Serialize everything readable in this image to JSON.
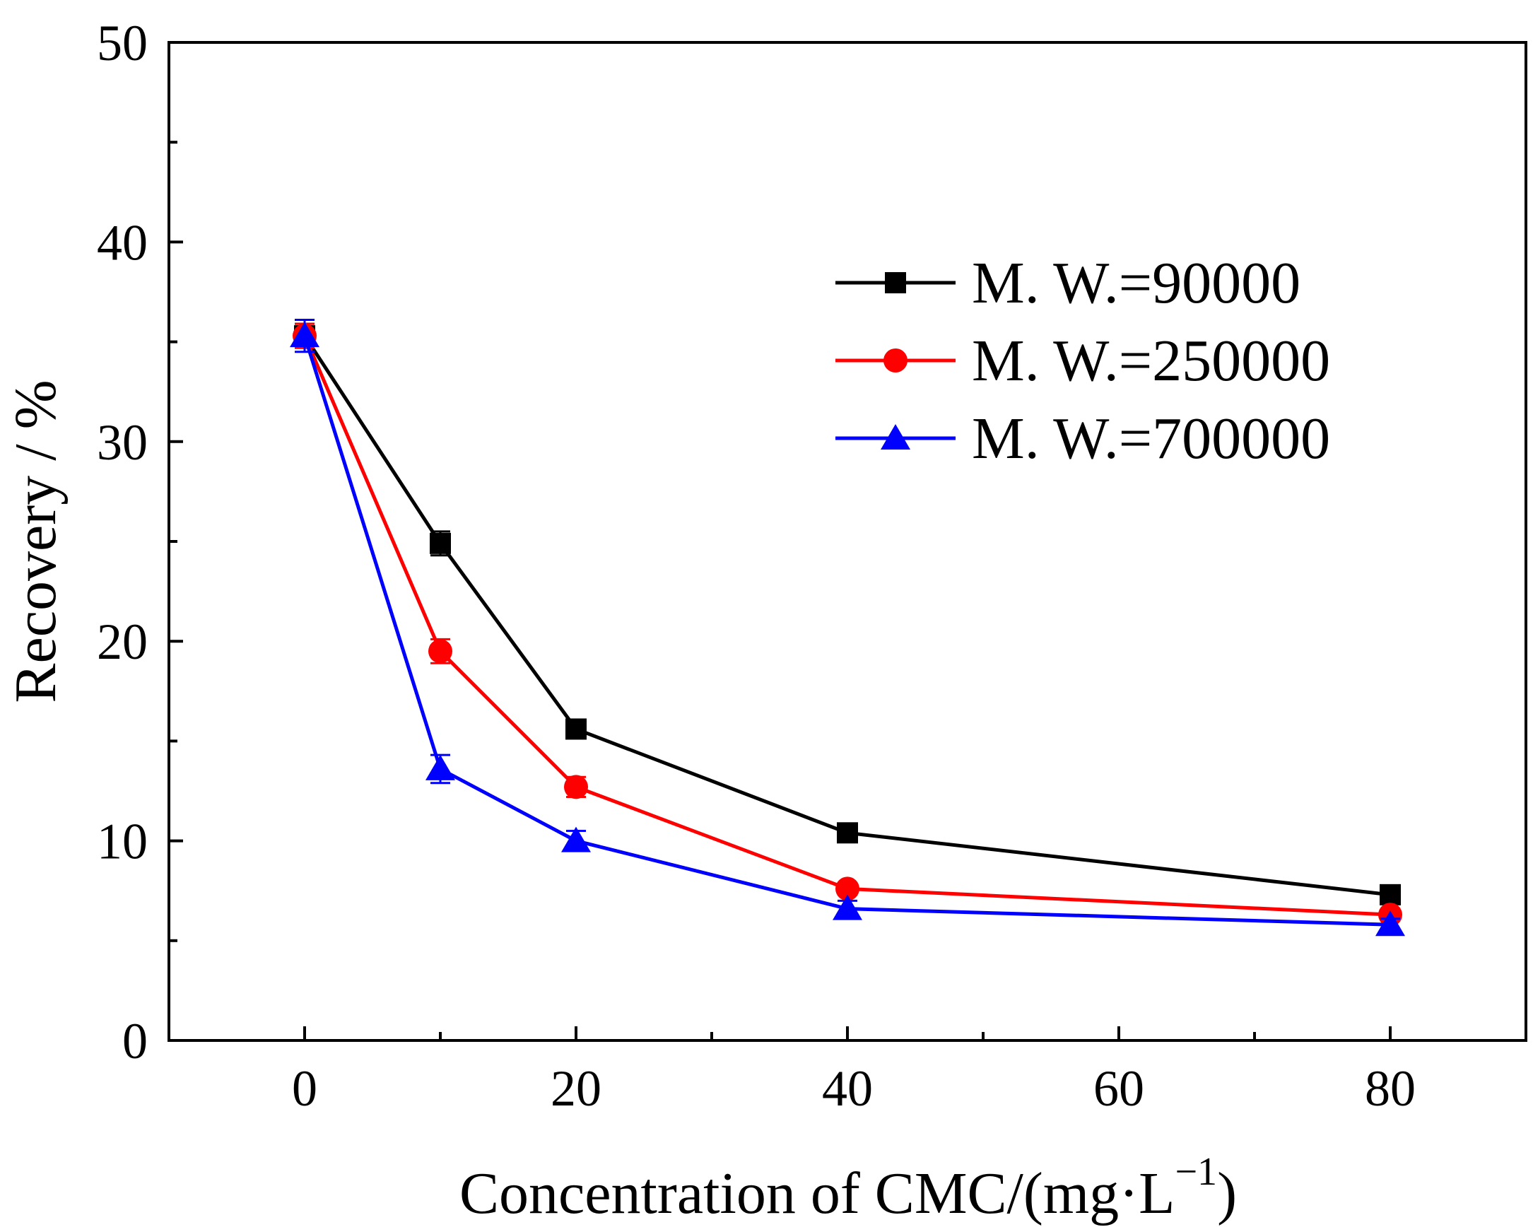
{
  "chart_data": {
    "type": "line",
    "title": "",
    "xlabel": "Concentration of CMC/(mg·L",
    "xlabel_sup": "−1",
    "xlabel_close": ")",
    "ylabel": "Recovery / %",
    "xlim": [
      -10,
      90
    ],
    "ylim": [
      0,
      50
    ],
    "x_ticks": [
      0,
      20,
      40,
      60,
      80
    ],
    "x_tick_labels": [
      "0",
      "20",
      "40",
      "60",
      "80"
    ],
    "x_minor_ticks": [
      10,
      30,
      50,
      70
    ],
    "y_ticks": [
      0,
      10,
      20,
      30,
      40,
      50
    ],
    "y_tick_labels": [
      "0",
      "10",
      "20",
      "30",
      "40",
      "50"
    ],
    "y_minor_ticks": [
      5,
      15,
      25,
      35,
      45
    ],
    "grid": false,
    "legend_position": "top-right",
    "x": [
      0,
      10,
      20,
      40,
      80
    ],
    "series": [
      {
        "name": "M. W.=90000",
        "color": "#000000",
        "marker": "square",
        "values": [
          35.3,
          24.9,
          15.6,
          10.4,
          7.3
        ],
        "errors": [
          0.6,
          0.6,
          0.4,
          0.3,
          0.3
        ]
      },
      {
        "name": "M. W.=250000",
        "color": "#ff0000",
        "marker": "circle",
        "values": [
          35.3,
          19.5,
          12.7,
          7.6,
          6.3
        ],
        "errors": [
          0.6,
          0.6,
          0.5,
          0.3,
          0.3
        ]
      },
      {
        "name": "M. W.=700000",
        "color": "#0000ff",
        "marker": "triangle",
        "values": [
          35.3,
          13.6,
          10.0,
          6.6,
          5.8
        ],
        "errors": [
          0.8,
          0.7,
          0.5,
          0.4,
          0.3
        ]
      }
    ]
  }
}
